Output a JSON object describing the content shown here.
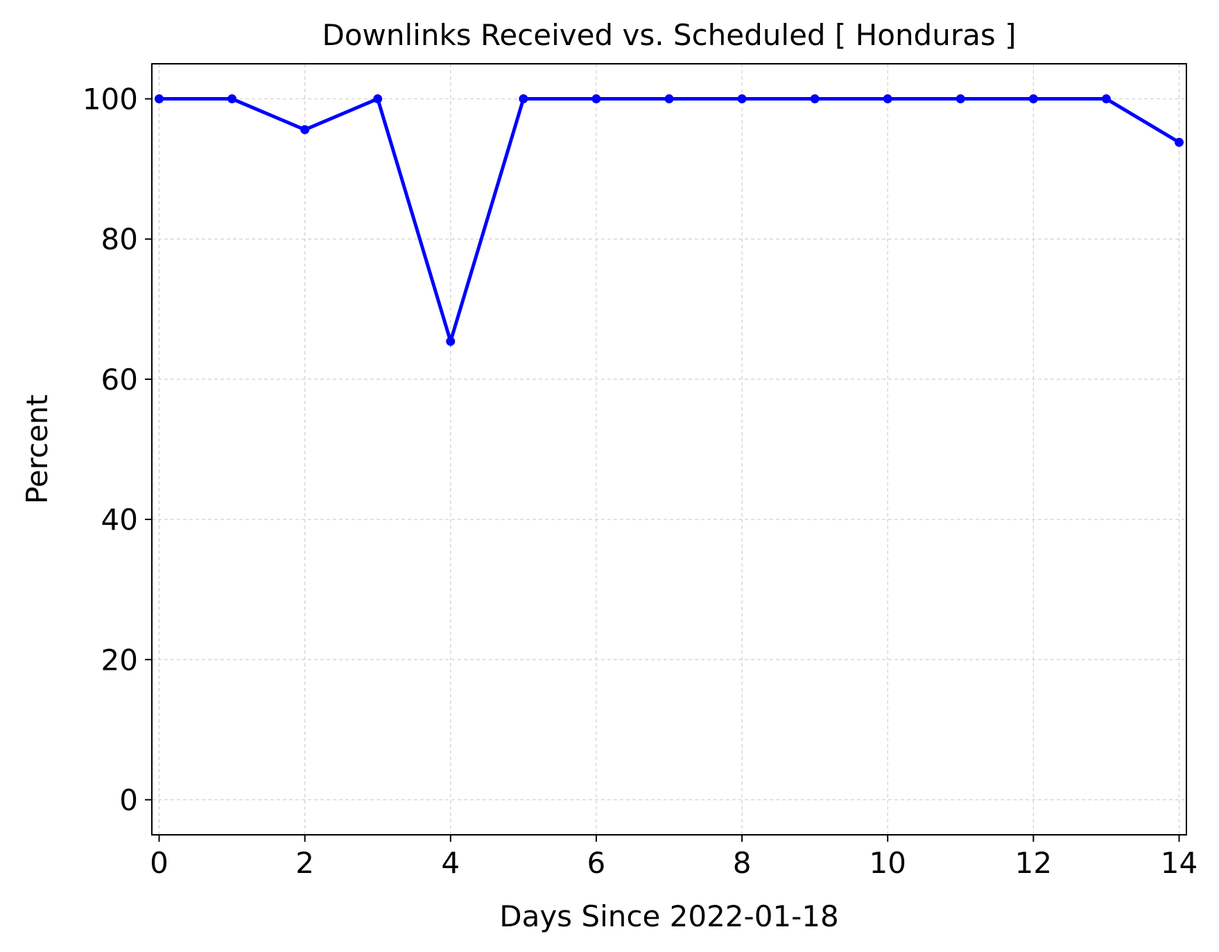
{
  "chart_data": {
    "type": "line",
    "title": "Downlinks Received vs. Scheduled [ Honduras ]",
    "xlabel": "Days Since 2022-01-18",
    "ylabel": "Percent",
    "xlim": [
      -0.1,
      14.1
    ],
    "ylim": [
      -5,
      105
    ],
    "xticks": [
      0,
      2,
      4,
      6,
      8,
      10,
      12,
      14
    ],
    "yticks": [
      0,
      20,
      40,
      60,
      80,
      100
    ],
    "grid": true,
    "series": [
      {
        "color": "#0000ff",
        "marker": "dot",
        "x": [
          0,
          1,
          2,
          3,
          4,
          5,
          6,
          7,
          8,
          9,
          10,
          11,
          12,
          13,
          14
        ],
        "y": [
          100,
          100,
          95.6,
          100,
          65.4,
          100,
          100,
          100,
          100,
          100,
          100,
          100,
          100,
          100,
          93.8
        ]
      }
    ]
  }
}
